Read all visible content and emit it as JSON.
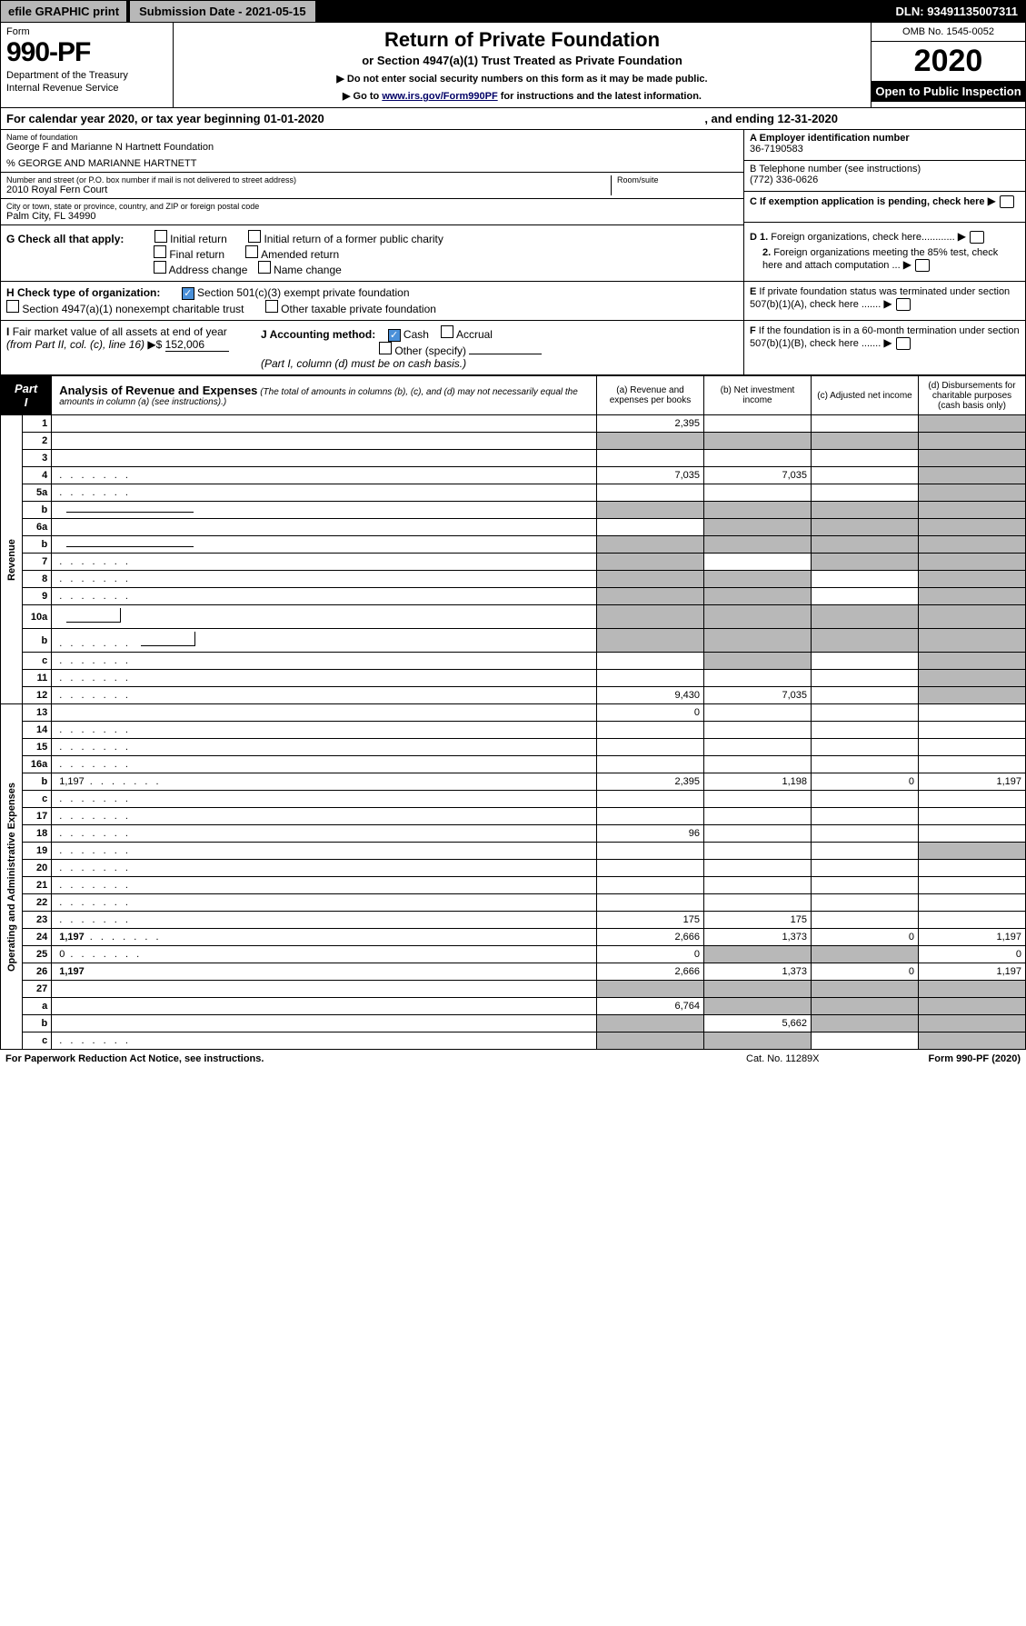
{
  "topbar": {
    "efile": "efile GRAPHIC print",
    "subdate": "Submission Date - 2021-05-15",
    "dln": "DLN: 93491135007311"
  },
  "header": {
    "form_label": "Form",
    "form_num": "990-PF",
    "dept1": "Department of the Treasury",
    "dept2": "Internal Revenue Service",
    "title": "Return of Private Foundation",
    "subtitle": "or Section 4947(a)(1) Trust Treated as Private Foundation",
    "note1": "▶ Do not enter social security numbers on this form as it may be made public.",
    "note2_pre": "▶ Go to ",
    "note2_link": "www.irs.gov/Form990PF",
    "note2_post": " for instructions and the latest information.",
    "omb": "OMB No. 1545-0052",
    "year": "2020",
    "open": "Open to Public Inspection"
  },
  "calyear": {
    "text": "For calendar year 2020, or tax year beginning 01-01-2020",
    "ending": ", and ending 12-31-2020"
  },
  "info": {
    "name_label": "Name of foundation",
    "name": "George F and Marianne N Hartnett Foundation",
    "care": "% GEORGE AND MARIANNE HARTNETT",
    "addr_label": "Number and street (or P.O. box number if mail is not delivered to street address)",
    "addr": "2010 Royal Fern Court",
    "room_label": "Room/suite",
    "city_label": "City or town, state or province, country, and ZIP or foreign postal code",
    "city": "Palm City, FL  34990",
    "ein_label": "A Employer identification number",
    "ein": "36-7190583",
    "phone_label": "B Telephone number (see instructions)",
    "phone": "(772) 336-0626",
    "c_label": "C If exemption application is pending, check here",
    "d1": "D 1. Foreign organizations, check here............",
    "d2": "2. Foreign organizations meeting the 85% test, check here and attach computation ...",
    "e": "E  If private foundation status was terminated under section 507(b)(1)(A), check here .......",
    "f": "F  If the foundation is in a 60-month termination under section 507(b)(1)(B), check here ......."
  },
  "g": {
    "label": "G Check all that apply:",
    "opts": [
      "Initial return",
      "Initial return of a former public charity",
      "Final return",
      "Amended return",
      "Address change",
      "Name change"
    ]
  },
  "h": {
    "label": "H Check type of organization:",
    "opt1": "Section 501(c)(3) exempt private foundation",
    "opt2": "Section 4947(a)(1) nonexempt charitable trust",
    "opt3": "Other taxable private foundation"
  },
  "i": {
    "label": "I Fair market value of all assets at end of year (from Part II, col. (c), line 16)",
    "val": "152,006"
  },
  "j": {
    "label": "J Accounting method:",
    "cash": "Cash",
    "accrual": "Accrual",
    "other": "Other (specify)",
    "note": "(Part I, column (d) must be on cash basis.)"
  },
  "part1": {
    "label": "Part I",
    "title": "Analysis of Revenue and Expenses",
    "desc": "(The total of amounts in columns (b), (c), and (d) may not necessarily equal the amounts in column (a) (see instructions).)",
    "cols": {
      "a": "(a)   Revenue and expenses per books",
      "b": "(b)  Net investment income",
      "c": "(c)  Adjusted net income",
      "d": "(d)  Disbursements for charitable purposes (cash basis only)"
    }
  },
  "revenue_label": "Revenue",
  "expenses_label": "Operating and Administrative Expenses",
  "rows": [
    {
      "n": "1",
      "d": "",
      "a": "2,395",
      "b": "",
      "c": "",
      "shade_d": true
    },
    {
      "n": "2",
      "d": "",
      "a": "",
      "b": "",
      "c": "",
      "shade_all": true,
      "bold_parts": true
    },
    {
      "n": "3",
      "d": "",
      "a": "",
      "b": "",
      "c": "",
      "shade_d": true
    },
    {
      "n": "4",
      "d": "",
      "a": "7,035",
      "b": "7,035",
      "c": "",
      "shade_d": true,
      "dots": true
    },
    {
      "n": "5a",
      "d": "",
      "a": "",
      "b": "",
      "c": "",
      "shade_d": true,
      "dots": true
    },
    {
      "n": "b",
      "d": "",
      "a": "",
      "b": "",
      "c": "",
      "shade_all": true,
      "underline": true
    },
    {
      "n": "6a",
      "d": "",
      "a": "",
      "b": "",
      "c": "",
      "shade_bcd": true
    },
    {
      "n": "b",
      "d": "",
      "a": "",
      "b": "",
      "c": "",
      "shade_all": true,
      "underline": true
    },
    {
      "n": "7",
      "d": "",
      "a": "",
      "b": "",
      "c": "",
      "shade_acd": true,
      "dots": true
    },
    {
      "n": "8",
      "d": "",
      "a": "",
      "b": "",
      "c": "",
      "shade_abd": true,
      "dots": true
    },
    {
      "n": "9",
      "d": "",
      "a": "",
      "b": "",
      "c": "",
      "shade_abd": true,
      "dots": true
    },
    {
      "n": "10a",
      "d": "",
      "a": "",
      "b": "",
      "c": "",
      "shade_all": true,
      "underline_short": true
    },
    {
      "n": "b",
      "d": "",
      "a": "",
      "b": "",
      "c": "",
      "shade_all": true,
      "dots": true,
      "underline_short": true
    },
    {
      "n": "c",
      "d": "",
      "a": "",
      "b": "",
      "c": "",
      "shade_bd": true,
      "dots": true
    },
    {
      "n": "11",
      "d": "",
      "a": "",
      "b": "",
      "c": "",
      "shade_d": true,
      "dots": true
    },
    {
      "n": "12",
      "d": "",
      "a": "9,430",
      "b": "7,035",
      "c": "",
      "shade_d": true,
      "bold": true,
      "dots": true
    }
  ],
  "exp_rows": [
    {
      "n": "13",
      "d": "",
      "a": "0",
      "b": "",
      "c": ""
    },
    {
      "n": "14",
      "d": "",
      "a": "",
      "b": "",
      "c": "",
      "dots": true
    },
    {
      "n": "15",
      "d": "",
      "a": "",
      "b": "",
      "c": "",
      "dots": true
    },
    {
      "n": "16a",
      "d": "",
      "a": "",
      "b": "",
      "c": "",
      "dots": true
    },
    {
      "n": "b",
      "d": "1,197",
      "a": "2,395",
      "b": "1,198",
      "c": "0",
      "dots": true
    },
    {
      "n": "c",
      "d": "",
      "a": "",
      "b": "",
      "c": "",
      "dots": true
    },
    {
      "n": "17",
      "d": "",
      "a": "",
      "b": "",
      "c": "",
      "dots": true
    },
    {
      "n": "18",
      "d": "",
      "a": "96",
      "b": "",
      "c": "",
      "dots": true
    },
    {
      "n": "19",
      "d": "",
      "a": "",
      "b": "",
      "c": "",
      "shade_d": true,
      "dots": true
    },
    {
      "n": "20",
      "d": "",
      "a": "",
      "b": "",
      "c": "",
      "dots": true
    },
    {
      "n": "21",
      "d": "",
      "a": "",
      "b": "",
      "c": "",
      "dots": true
    },
    {
      "n": "22",
      "d": "",
      "a": "",
      "b": "",
      "c": "",
      "dots": true
    },
    {
      "n": "23",
      "d": "",
      "a": "175",
      "b": "175",
      "c": "",
      "dots": true
    },
    {
      "n": "24",
      "d": "1,197",
      "a": "2,666",
      "b": "1,373",
      "c": "0",
      "bold": true,
      "dots": true
    },
    {
      "n": "25",
      "d": "0",
      "a": "0",
      "b": "",
      "c": "",
      "shade_bc": true,
      "dots": true
    },
    {
      "n": "26",
      "d": "1,197",
      "a": "2,666",
      "b": "1,373",
      "c": "0",
      "bold": true
    },
    {
      "n": "27",
      "d": "",
      "a": "",
      "b": "",
      "c": "",
      "shade_all": true
    },
    {
      "n": "a",
      "d": "",
      "a": "6,764",
      "b": "",
      "c": "",
      "shade_bcd": true,
      "bold": true
    },
    {
      "n": "b",
      "d": "",
      "a": "",
      "b": "5,662",
      "c": "",
      "shade_acd": true,
      "bold": true
    },
    {
      "n": "c",
      "d": "",
      "a": "",
      "b": "",
      "c": "",
      "shade_abd": true,
      "bold": true,
      "dots": true
    }
  ],
  "footer": {
    "pra": "For Paperwork Reduction Act Notice, see instructions.",
    "cat": "Cat. No. 11289X",
    "form": "Form 990-PF (2020)"
  },
  "colors": {
    "shade": "#b8b8b8",
    "checked": "#4a90d9",
    "link": "#0000cc"
  }
}
